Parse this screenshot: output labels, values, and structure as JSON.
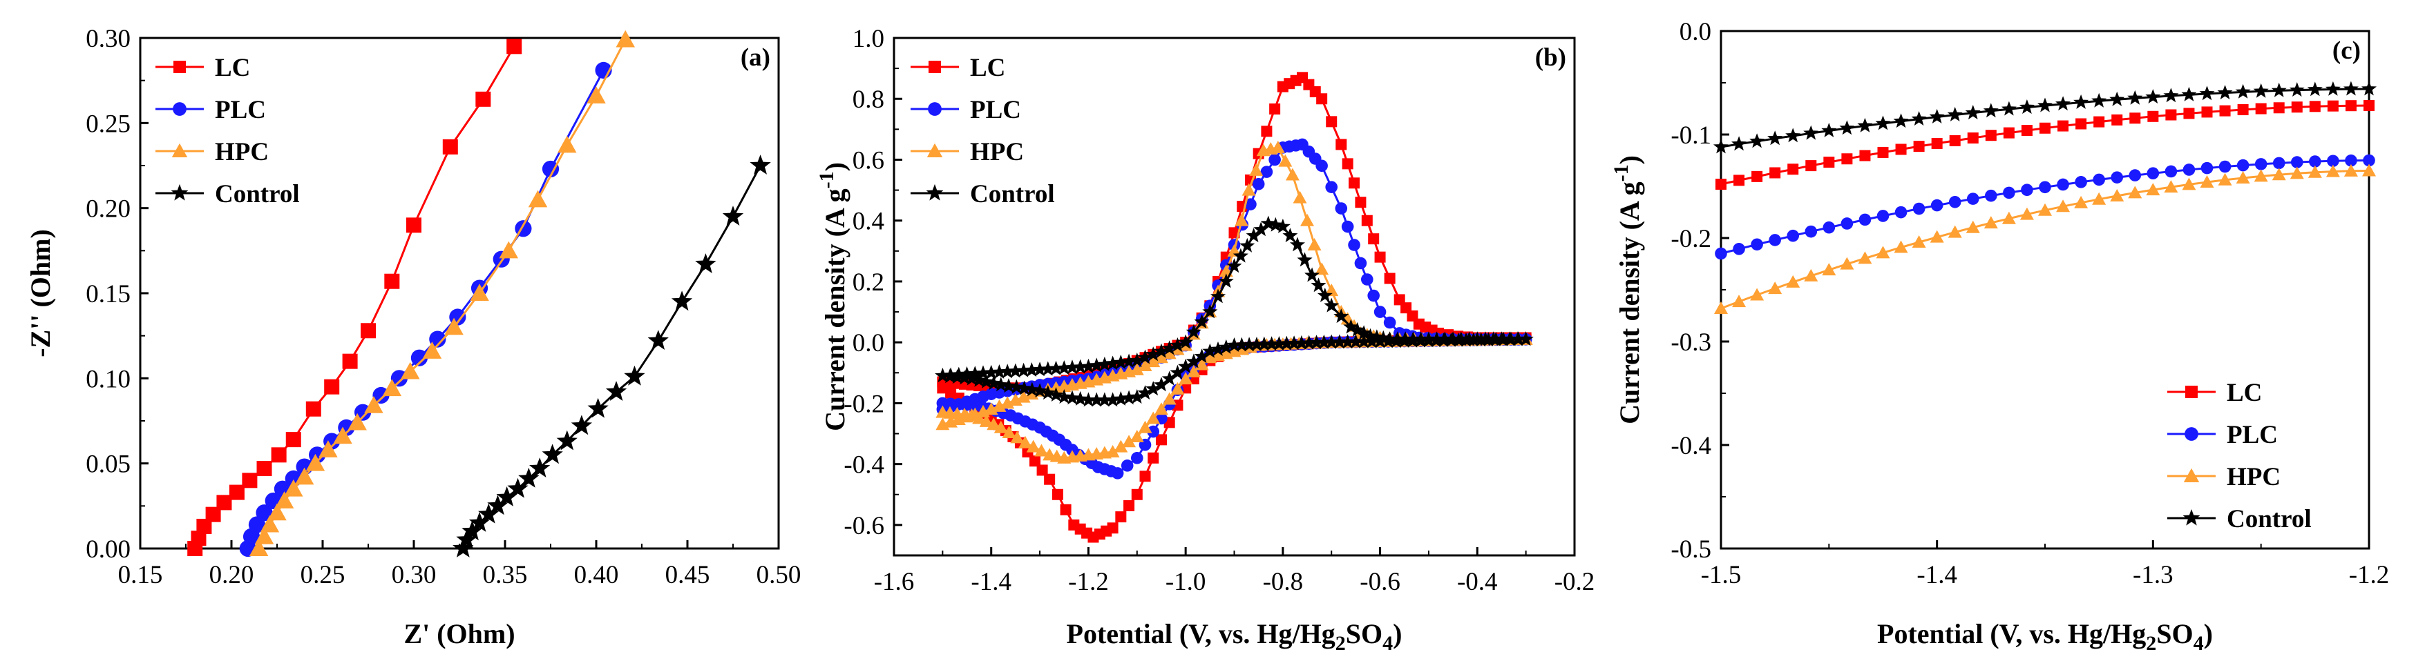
{
  "colors": {
    "LC": "#ff0000",
    "PLC": "#1a1aff",
    "HPC": "#ffa033",
    "Control": "#000000"
  },
  "chart_data": [
    {
      "type": "scatter",
      "panel_tag": "(a)",
      "xlabel": "Z' (Ohm)",
      "ylabel": "-Z'' (Ohm)",
      "xlim": [
        0.15,
        0.5
      ],
      "ylim": [
        0.0,
        0.3
      ],
      "xticks": [
        "0.15",
        "0.20",
        "0.25",
        "0.30",
        "0.35",
        "0.40",
        "0.45",
        "0.50"
      ],
      "yticks": [
        "0.00",
        "0.05",
        "0.10",
        "0.15",
        "0.20",
        "0.25",
        "0.30"
      ],
      "legend_location": "top-left",
      "series": [
        {
          "name": "LC",
          "marker": "square",
          "x": [
            0.18,
            0.182,
            0.185,
            0.19,
            0.196,
            0.203,
            0.21,
            0.218,
            0.226,
            0.234,
            0.245,
            0.255,
            0.265,
            0.275,
            0.288,
            0.3,
            0.32,
            0.338,
            0.355
          ],
          "y": [
            0.0,
            0.006,
            0.013,
            0.02,
            0.027,
            0.033,
            0.04,
            0.047,
            0.055,
            0.064,
            0.082,
            0.095,
            0.11,
            0.128,
            0.157,
            0.19,
            0.236,
            0.264,
            0.295
          ]
        },
        {
          "name": "PLC",
          "marker": "circle",
          "x": [
            0.209,
            0.211,
            0.214,
            0.218,
            0.223,
            0.228,
            0.234,
            0.24,
            0.247,
            0.255,
            0.263,
            0.272,
            0.282,
            0.292,
            0.303,
            0.313,
            0.324,
            0.336,
            0.348,
            0.36,
            0.375,
            0.404
          ],
          "y": [
            0.0,
            0.007,
            0.014,
            0.021,
            0.028,
            0.035,
            0.041,
            0.048,
            0.055,
            0.063,
            0.071,
            0.08,
            0.09,
            0.1,
            0.112,
            0.123,
            0.136,
            0.153,
            0.17,
            0.188,
            0.223,
            0.281
          ]
        },
        {
          "name": "HPC",
          "marker": "triangle",
          "x": [
            0.215,
            0.218,
            0.221,
            0.225,
            0.229,
            0.234,
            0.24,
            0.246,
            0.253,
            0.261,
            0.269,
            0.278,
            0.288,
            0.298,
            0.31,
            0.322,
            0.336,
            0.352,
            0.368,
            0.384,
            0.4,
            0.416
          ],
          "y": [
            0.0,
            0.007,
            0.014,
            0.021,
            0.028,
            0.035,
            0.042,
            0.05,
            0.058,
            0.066,
            0.074,
            0.084,
            0.094,
            0.104,
            0.116,
            0.13,
            0.15,
            0.175,
            0.205,
            0.237,
            0.266,
            0.299
          ]
        },
        {
          "name": "Control",
          "marker": "star",
          "x": [
            0.327,
            0.329,
            0.332,
            0.336,
            0.341,
            0.346,
            0.351,
            0.357,
            0.363,
            0.369,
            0.376,
            0.384,
            0.392,
            0.401,
            0.411,
            0.421,
            0.434,
            0.447,
            0.46,
            0.475,
            0.49
          ],
          "y": [
            0.0,
            0.005,
            0.01,
            0.015,
            0.02,
            0.025,
            0.03,
            0.035,
            0.041,
            0.047,
            0.055,
            0.063,
            0.072,
            0.082,
            0.092,
            0.101,
            0.122,
            0.145,
            0.167,
            0.195,
            0.225
          ]
        }
      ]
    },
    {
      "type": "line",
      "panel_tag": "(b)",
      "xlabel_parts": [
        "Potential (V, vs. Hg/Hg",
        "2",
        "SO",
        "4",
        ")"
      ],
      "ylabel_parts": [
        "Current density (A g",
        "-1",
        ")"
      ],
      "xlim": [
        -1.6,
        -0.2
      ],
      "ylim": [
        -0.7,
        1.0
      ],
      "xticks": [
        "-1.6",
        "-1.4",
        "-1.2",
        "-1.0",
        "-0.8",
        "-0.6",
        "-0.4",
        "-0.2"
      ],
      "yticks": [
        "-0.6",
        "-0.4",
        "-0.2",
        "0.0",
        "0.2",
        "0.4",
        "0.6",
        "0.8",
        "1.0"
      ],
      "legend_location": "top-left",
      "series": [
        {
          "name": "LC",
          "marker": "square",
          "forward": {
            "x": [
              -1.5,
              -1.44,
              -1.38,
              -1.32,
              -1.26,
              -1.2,
              -1.15,
              -1.1,
              -1.05,
              -1.0,
              -0.95,
              -0.9,
              -0.85,
              -0.8,
              -0.76,
              -0.72,
              -0.68,
              -0.64,
              -0.6,
              -0.56,
              -0.52,
              -0.48,
              -0.44,
              -0.4,
              -0.35,
              -0.3
            ],
            "y": [
              -0.13,
              -0.14,
              -0.15,
              -0.15,
              -0.13,
              -0.11,
              -0.09,
              -0.06,
              -0.03,
              0.0,
              0.12,
              0.36,
              0.62,
              0.84,
              0.87,
              0.8,
              0.65,
              0.46,
              0.28,
              0.14,
              0.06,
              0.03,
              0.02,
              0.015,
              0.015,
              0.015
            ]
          },
          "reverse": {
            "x": [
              -0.3,
              -0.4,
              -0.5,
              -0.6,
              -0.7,
              -0.8,
              -0.9,
              -0.95,
              -1.0,
              -1.05,
              -1.1,
              -1.15,
              -1.19,
              -1.23,
              -1.28,
              -1.34,
              -1.4,
              -1.45,
              -1.5
            ],
            "y": [
              0.01,
              0.008,
              0.006,
              0.004,
              0.0,
              -0.01,
              -0.02,
              -0.06,
              -0.15,
              -0.32,
              -0.5,
              -0.61,
              -0.64,
              -0.6,
              -0.45,
              -0.33,
              -0.25,
              -0.2,
              -0.15
            ]
          }
        },
        {
          "name": "PLC",
          "marker": "circle",
          "forward": {
            "x": [
              -1.5,
              -1.4,
              -1.3,
              -1.2,
              -1.1,
              -1.05,
              -1.0,
              -0.95,
              -0.9,
              -0.85,
              -0.8,
              -0.76,
              -0.72,
              -0.68,
              -0.64,
              -0.6,
              -0.56,
              -0.52,
              -0.45,
              -0.4,
              -0.3
            ],
            "y": [
              -0.22,
              -0.17,
              -0.14,
              -0.12,
              -0.08,
              -0.05,
              -0.01,
              0.12,
              0.32,
              0.52,
              0.64,
              0.65,
              0.58,
              0.44,
              0.26,
              0.1,
              0.03,
              0.015,
              0.01,
              0.01,
              0.01
            ]
          },
          "reverse": {
            "x": [
              -0.3,
              -0.5,
              -0.7,
              -0.9,
              -0.95,
              -1.0,
              -1.05,
              -1.1,
              -1.14,
              -1.18,
              -1.22,
              -1.26,
              -1.3,
              -1.36,
              -1.42,
              -1.5
            ],
            "y": [
              0.01,
              0.005,
              0.0,
              -0.02,
              -0.04,
              -0.11,
              -0.25,
              -0.38,
              -0.43,
              -0.41,
              -0.37,
              -0.32,
              -0.28,
              -0.24,
              -0.21,
              -0.2
            ]
          }
        },
        {
          "name": "HPC",
          "marker": "triangle",
          "forward": {
            "x": [
              -1.5,
              -1.4,
              -1.3,
              -1.2,
              -1.1,
              -1.05,
              -1.0,
              -0.95,
              -0.9,
              -0.87,
              -0.84,
              -0.81,
              -0.78,
              -0.75,
              -0.72,
              -0.68,
              -0.64,
              -0.6,
              -0.56,
              -0.5,
              -0.4,
              -0.3
            ],
            "y": [
              -0.27,
              -0.22,
              -0.16,
              -0.13,
              -0.09,
              -0.05,
              -0.01,
              0.1,
              0.3,
              0.5,
              0.63,
              0.64,
              0.55,
              0.4,
              0.24,
              0.1,
              0.03,
              0.015,
              0.01,
              0.01,
              0.01,
              0.01
            ]
          },
          "reverse": {
            "x": [
              -0.3,
              -0.5,
              -0.7,
              -0.85,
              -0.95,
              -1.0,
              -1.05,
              -1.1,
              -1.15,
              -1.2,
              -1.25,
              -1.28,
              -1.33,
              -1.38,
              -1.44,
              -1.5
            ],
            "y": [
              0.01,
              0.005,
              0.0,
              -0.01,
              -0.05,
              -0.12,
              -0.22,
              -0.31,
              -0.36,
              -0.37,
              -0.38,
              -0.37,
              -0.33,
              -0.28,
              -0.24,
              -0.23
            ]
          }
        },
        {
          "name": "Control",
          "marker": "star",
          "forward": {
            "x": [
              -1.5,
              -1.4,
              -1.3,
              -1.2,
              -1.1,
              -1.05,
              -1.0,
              -0.95,
              -0.9,
              -0.86,
              -0.83,
              -0.8,
              -0.77,
              -0.74,
              -0.7,
              -0.66,
              -0.62,
              -0.58,
              -0.5,
              -0.4,
              -0.3
            ],
            "y": [
              -0.11,
              -0.1,
              -0.09,
              -0.08,
              -0.06,
              -0.03,
              0.0,
              0.1,
              0.25,
              0.35,
              0.39,
              0.38,
              0.32,
              0.22,
              0.12,
              0.05,
              0.02,
              0.01,
              0.01,
              0.01,
              0.01
            ]
          },
          "reverse": {
            "x": [
              -0.3,
              -0.5,
              -0.7,
              -0.9,
              -0.95,
              -1.0,
              -1.05,
              -1.1,
              -1.15,
              -1.2,
              -1.25,
              -1.3,
              -1.38,
              -1.44,
              -1.5
            ],
            "y": [
              0.01,
              0.005,
              0.0,
              -0.01,
              -0.03,
              -0.08,
              -0.14,
              -0.18,
              -0.19,
              -0.19,
              -0.18,
              -0.16,
              -0.14,
              -0.12,
              -0.11
            ]
          }
        }
      ]
    },
    {
      "type": "line",
      "panel_tag": "(c)",
      "xlabel_parts": [
        "Potential (V, vs. Hg/Hg",
        "2",
        "SO",
        "4",
        ")"
      ],
      "ylabel_parts": [
        "Current density (A g",
        "-1",
        ")"
      ],
      "xlim": [
        -1.5,
        -1.2
      ],
      "ylim": [
        -0.5,
        0.0
      ],
      "xticks": [
        "-1.5",
        "-1.4",
        "-1.3",
        "-1.2"
      ],
      "yticks": [
        "-0.5",
        "-0.4",
        "-0.3",
        "-0.2",
        "-0.1",
        "0.0"
      ],
      "legend_location": "bottom-right",
      "series": [
        {
          "name": "LC",
          "marker": "square",
          "y_start": -0.148,
          "y_end": -0.072
        },
        {
          "name": "PLC",
          "marker": "circle",
          "y_start": -0.215,
          "y_end": -0.125
        },
        {
          "name": "HPC",
          "marker": "triangle",
          "y_start": -0.268,
          "y_end": -0.135
        },
        {
          "name": "Control",
          "marker": "star",
          "y_start": -0.112,
          "y_end": -0.056
        }
      ]
    }
  ]
}
